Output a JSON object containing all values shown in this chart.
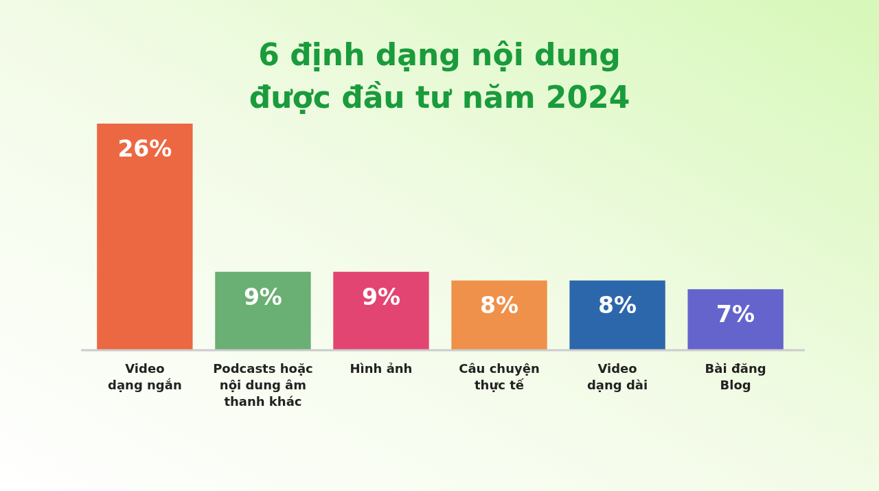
{
  "chart_data": {
    "type": "bar",
    "title": "6 định dạng nội dung\nđược đầu tư năm 2024",
    "categories": [
      "Video\ndạng ngắn",
      "Podcasts hoặc\nnội dung âm\nthanh khác",
      "Hình ảnh",
      "Câu chuyện\nthực tế",
      "Video\ndạng dài",
      "Bài đăng\nBlog"
    ],
    "values": [
      26,
      9,
      9,
      8,
      8,
      7
    ],
    "colors": [
      "#ec6843",
      "#6aaf73",
      "#e34572",
      "#ef914a",
      "#2c67ab",
      "#6464cc"
    ],
    "data_labels": true,
    "value_labels": [
      "26%",
      "9%",
      "9%",
      "8%",
      "8%",
      "7%"
    ]
  }
}
